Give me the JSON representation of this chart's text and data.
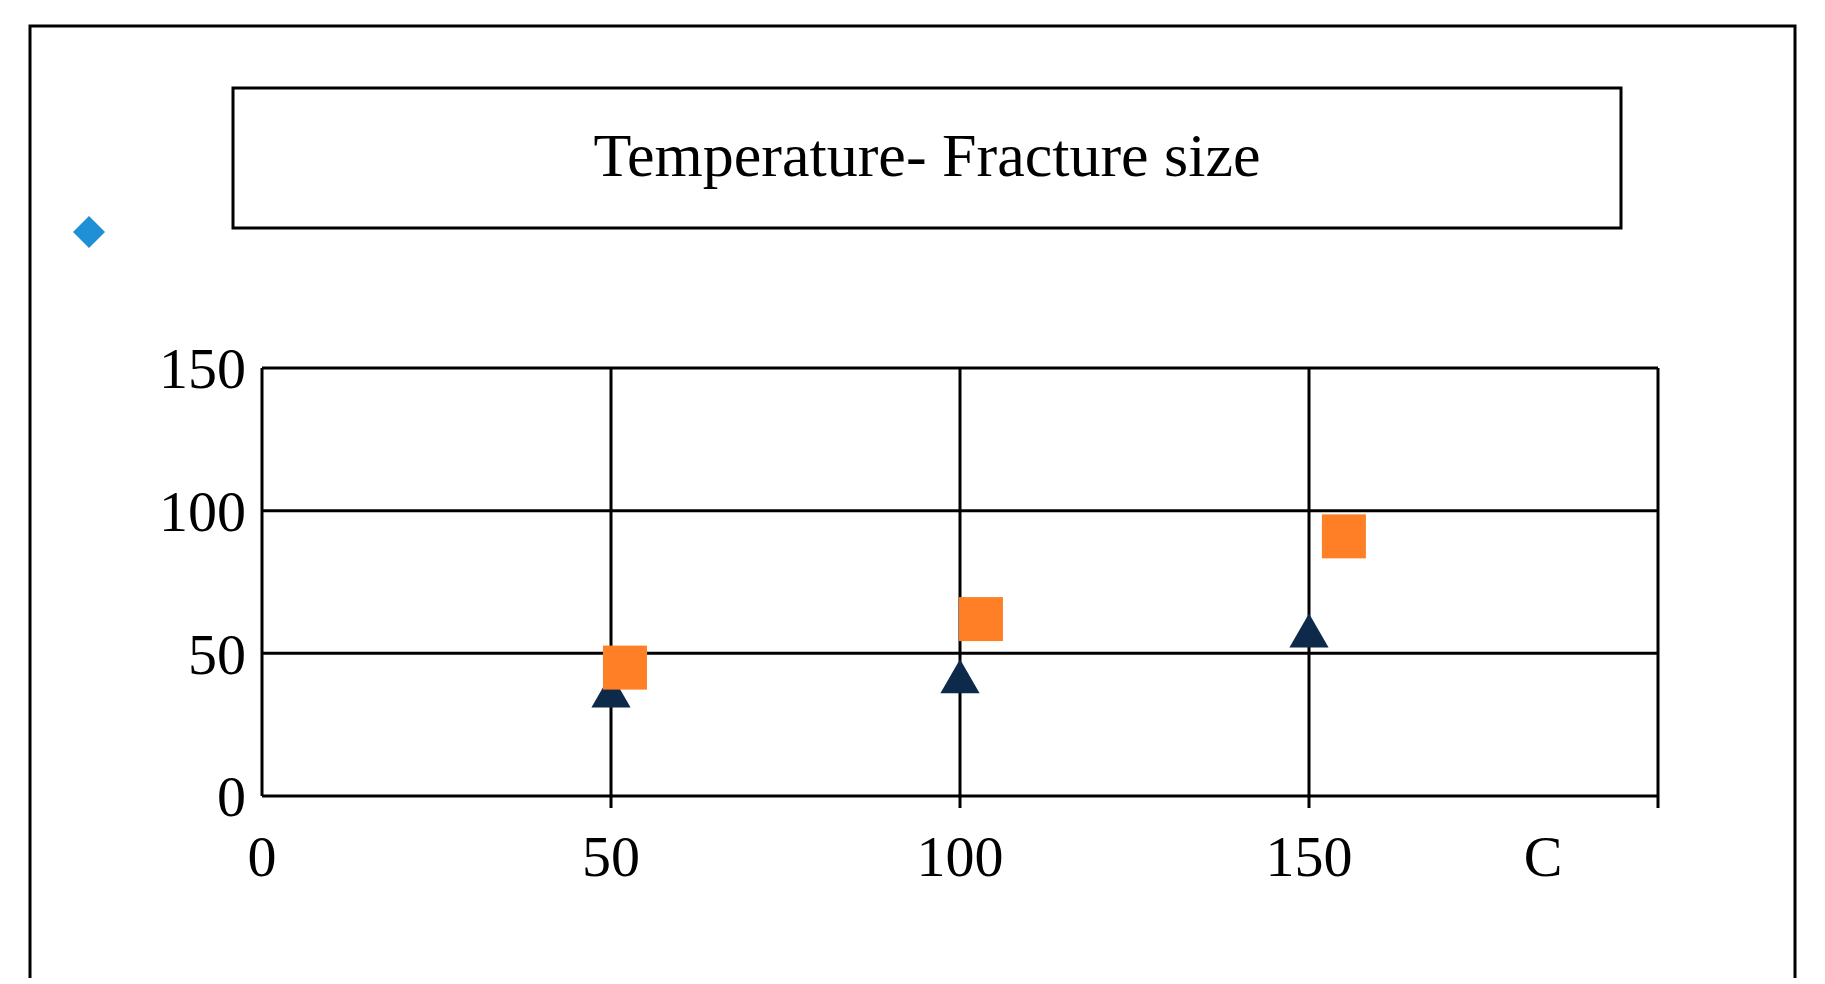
{
  "chart_data": {
    "type": "scatter",
    "title": "Temperature- Fracture size",
    "xlabel": "C",
    "xlim": [
      0,
      200
    ],
    "xticks": [
      0,
      50,
      100,
      150
    ],
    "ylim": [
      0,
      150
    ],
    "yticks": [
      0,
      50,
      100,
      150
    ],
    "grid": true,
    "series": [
      {
        "color": "#0d2a4a",
        "marker": "triangle",
        "x": [
          50,
          100,
          150
        ],
        "values": [
          35,
          40,
          56
        ]
      },
      {
        "color": "#ff7f27",
        "marker": "square",
        "x": [
          52,
          103,
          155
        ],
        "values": [
          45,
          62,
          91
        ]
      }
    ]
  }
}
